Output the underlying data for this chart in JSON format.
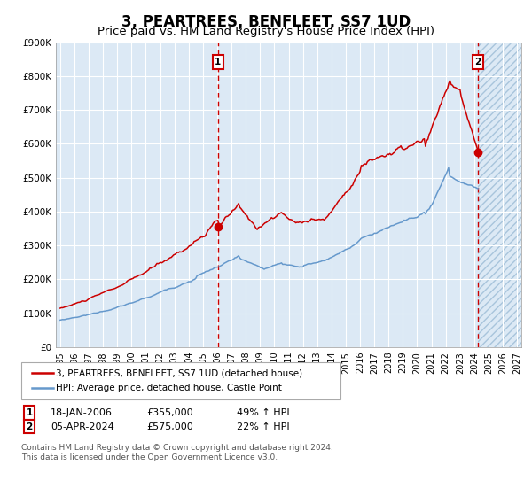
{
  "title": "3, PEARTREES, BENFLEET, SS7 1UD",
  "subtitle": "Price paid vs. HM Land Registry's House Price Index (HPI)",
  "title_fontsize": 12,
  "subtitle_fontsize": 9.5,
  "background_color": "#dce9f5",
  "red_color": "#cc0000",
  "blue_color": "#6699cc",
  "grid_color": "#ffffff",
  "ylim": [
    0,
    900000
  ],
  "yticks": [
    0,
    100000,
    200000,
    300000,
    400000,
    500000,
    600000,
    700000,
    800000,
    900000
  ],
  "ytick_labels": [
    "£0",
    "£100K",
    "£200K",
    "£300K",
    "£400K",
    "£500K",
    "£600K",
    "£700K",
    "£800K",
    "£900K"
  ],
  "xlim_start": 1994.7,
  "xlim_end": 2027.3,
  "xticks": [
    1995,
    1996,
    1997,
    1998,
    1999,
    2000,
    2001,
    2002,
    2003,
    2004,
    2005,
    2006,
    2007,
    2008,
    2009,
    2010,
    2011,
    2012,
    2013,
    2014,
    2015,
    2016,
    2017,
    2018,
    2019,
    2020,
    2021,
    2022,
    2023,
    2024,
    2025,
    2026,
    2027
  ],
  "event1_x": 2006.05,
  "event1_y": 355000,
  "event1_label": "18-JAN-2006",
  "event1_price": "£355,000",
  "event1_hpi": "49% ↑ HPI",
  "event2_x": 2024.27,
  "event2_y": 575000,
  "event2_label": "05-APR-2024",
  "event2_price": "£575,000",
  "event2_hpi": "22% ↑ HPI",
  "legend_line1": "3, PEARTREES, BENFLEET, SS7 1UD (detached house)",
  "legend_line2": "HPI: Average price, detached house, Castle Point",
  "footer": "Contains HM Land Registry data © Crown copyright and database right 2024.\nThis data is licensed under the Open Government Licence v3.0."
}
